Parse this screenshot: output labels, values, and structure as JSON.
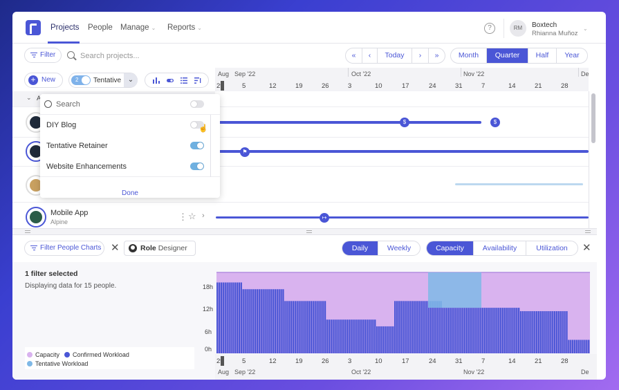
{
  "nav": {
    "tabs": [
      {
        "label": "Projects"
      },
      {
        "label": "People"
      },
      {
        "label": "Manage"
      },
      {
        "label": "Reports"
      }
    ],
    "help_icon": "question-icon",
    "user": {
      "initials": "RM",
      "company": "Boxtech",
      "name": "Rhianna Muñoz"
    }
  },
  "toolbar": {
    "filter_label": "Filter",
    "search_placeholder": "Search projects...",
    "today_label": "Today",
    "scales": [
      "Month",
      "Quarter",
      "Half",
      "Year"
    ],
    "selected_scale": "Quarter",
    "new_label": "New",
    "tentative_count": "2",
    "tentative_label": "Tentative"
  },
  "timeline": {
    "months": [
      "Aug",
      "Sep '22",
      "Oct '22",
      "Nov '22",
      "De"
    ],
    "days": [
      "29",
      "5",
      "12",
      "19",
      "26",
      "3",
      "10",
      "17",
      "24",
      "31",
      "7",
      "14",
      "21",
      "28"
    ],
    "today_day": "29"
  },
  "left_header_initial": "A",
  "dropdown": {
    "search_label": "Search",
    "items": [
      {
        "label": "DIY Blog",
        "on": false
      },
      {
        "label": "Tentative Retainer",
        "on": true
      },
      {
        "label": "Website Enhancements",
        "on": true
      }
    ],
    "done_label": "Done"
  },
  "projects": [
    {
      "name": "Mobile App",
      "client": "Alpine"
    }
  ],
  "people_charts": {
    "filter_label": "Filter People Charts",
    "role_label": "Role",
    "role_value": "Designer",
    "periods": [
      "Daily",
      "Weekly"
    ],
    "selected_period": "Daily",
    "metrics": [
      "Capacity",
      "Availability",
      "Utilization"
    ],
    "selected_metric": "Capacity",
    "filter_count_text": "1 filter selected",
    "displaying_text": "Displaying data for 15 people.",
    "legend": [
      {
        "label": "Capacity",
        "color": "#d9b3ef"
      },
      {
        "label": "Confirmed Workload",
        "color": "#4a56d6"
      },
      {
        "label": "Tentative Workload",
        "color": "#7fb8e6"
      }
    ]
  },
  "chart_data": {
    "type": "bar",
    "y_ticks": [
      "18h",
      "12h",
      "6h",
      "0h"
    ],
    "ylim": [
      0,
      24
    ],
    "capacity": 24,
    "x_tick_labels": [
      "29",
      "5",
      "12",
      "19",
      "26",
      "3",
      "10",
      "17",
      "24",
      "31",
      "7",
      "14",
      "21",
      "28"
    ],
    "series": [
      {
        "name": "Confirmed Workload",
        "values": [
          21,
          21,
          21,
          21,
          21,
          21,
          21,
          21,
          21,
          21,
          21,
          21,
          21,
          19,
          19,
          19,
          19,
          19,
          19,
          19,
          19,
          19,
          19,
          19,
          19,
          19,
          19,
          19,
          19,
          19,
          19,
          19,
          19,
          19,
          15.5,
          15.5,
          15.5,
          15.5,
          15.5,
          15.5,
          15.5,
          15.5,
          15.5,
          15.5,
          15.5,
          15.5,
          15.5,
          15.5,
          15.5,
          15.5,
          15.5,
          15.5,
          15.5,
          15.5,
          15.5,
          10,
          10,
          10,
          10,
          10,
          10,
          10,
          10,
          10,
          10,
          10,
          10,
          10,
          10,
          10,
          10,
          10,
          10,
          10,
          10,
          10,
          10,
          10,
          10,
          10,
          8,
          8,
          8,
          8,
          8,
          8,
          8,
          8,
          8,
          15.5,
          15.5,
          15.5,
          15.5,
          15.5,
          15.5,
          15.5,
          15.5,
          15.5,
          15.5,
          15.5,
          15.5,
          15.5,
          15.5,
          15.5,
          15.5,
          15.5,
          15.5,
          15.5,
          15.5,
          15.5,
          15.5,
          15.5,
          15.5,
          13.5,
          13.5,
          13.5,
          13.5,
          13.5,
          13.5,
          13.5,
          13.5,
          13.5,
          13.5,
          13.5,
          13.5,
          13.5,
          13.5,
          13.5,
          13.5,
          13.5,
          13.5,
          13.5,
          13.5,
          13.5,
          13.5,
          13.5,
          13.5,
          13.5,
          13.5,
          13.5,
          13.5,
          13.5,
          13.5,
          13.5,
          13.5,
          13.5,
          13.5,
          13.5,
          13.5,
          13.5,
          13.5,
          13.5,
          12.5,
          12.5,
          12.5,
          12.5,
          12.5,
          12.5,
          12.5,
          12.5,
          12.5,
          12.5,
          12.5,
          12.5,
          12.5,
          12.5,
          12.5,
          12.5,
          12.5,
          12.5,
          12.5,
          12.5,
          12.5,
          12.5,
          12.5,
          12.5,
          4,
          4,
          4,
          4,
          4,
          4,
          4,
          4,
          4,
          4,
          4
        ]
      },
      {
        "name": "Tentative Workload",
        "values": [
          0,
          0,
          0,
          0,
          0,
          0,
          0,
          0,
          0,
          0,
          0,
          0,
          0,
          0,
          0,
          0,
          0,
          0,
          0,
          0,
          0,
          0,
          0,
          0,
          0,
          0,
          0,
          0,
          0,
          0,
          0,
          0,
          0,
          0,
          0,
          0,
          0,
          0,
          0,
          0,
          0,
          0,
          0,
          0,
          0,
          0,
          0,
          0,
          0,
          0,
          0,
          0,
          0,
          0,
          0,
          0,
          0,
          0,
          0,
          0,
          0,
          0,
          0,
          0,
          0,
          0,
          0,
          0,
          0,
          0,
          0,
          0,
          0,
          0,
          0,
          0,
          0,
          0,
          0,
          0,
          0,
          0,
          0,
          0,
          0,
          0,
          0,
          0,
          0,
          0,
          0,
          0,
          0,
          0,
          0,
          0,
          0,
          0,
          0,
          0,
          0,
          0,
          0,
          0,
          0,
          0,
          0,
          0,
          0,
          0,
          0,
          0,
          0,
          0,
          0,
          0,
          0,
          0,
          0,
          0,
          0,
          0,
          0,
          0,
          0,
          0,
          0,
          0,
          0,
          0,
          0,
          0,
          0,
          0,
          0,
          0,
          0,
          0,
          0,
          0,
          0,
          0,
          0,
          0,
          0,
          0,
          0,
          0,
          0,
          0,
          0,
          0,
          0,
          0,
          0,
          0,
          0,
          0,
          0,
          0,
          0,
          0,
          0,
          0,
          0,
          0,
          0,
          0,
          0,
          0,
          0,
          0,
          0,
          0,
          0,
          0,
          0,
          0,
          0,
          0,
          0,
          0,
          0,
          0,
          0,
          0,
          0,
          0,
          0,
          0,
          0,
          0,
          0,
          0,
          0,
          0,
          0,
          0,
          0,
          0,
          0,
          0,
          0,
          0,
          0
        ]
      }
    ]
  }
}
